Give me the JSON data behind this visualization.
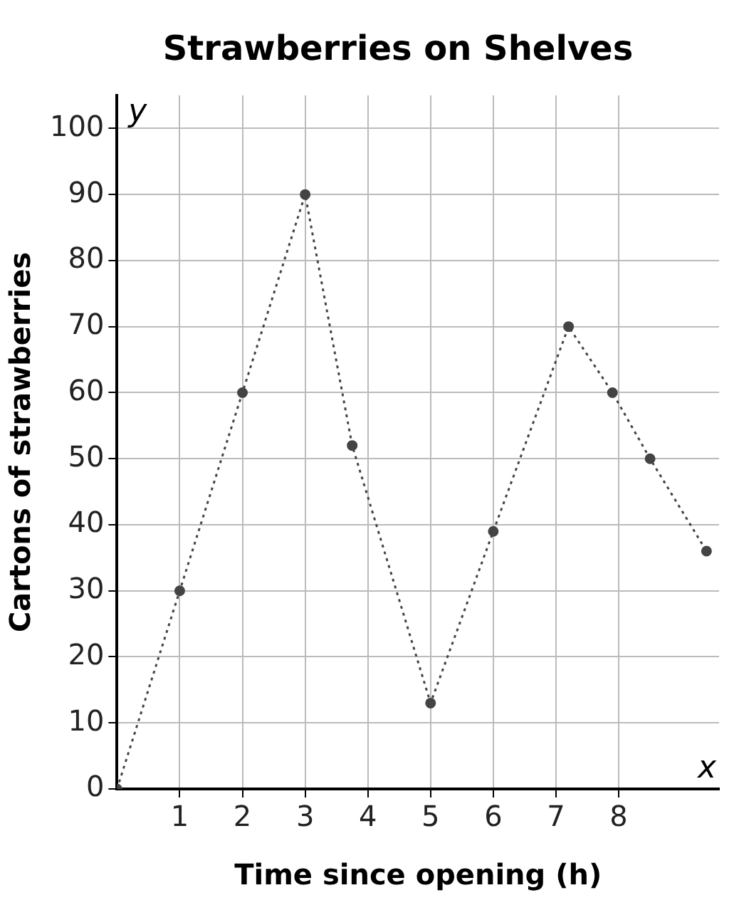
{
  "chart_data": {
    "type": "line",
    "title": "Strawberries on Shelves",
    "xlabel": "Time since opening (h)",
    "ylabel": "Cartons of strawberries",
    "x": [
      0,
      1,
      2,
      3,
      3.75,
      5,
      6,
      7.2,
      7.9,
      8.5,
      9.4
    ],
    "values": [
      0,
      30,
      60,
      90,
      52,
      13,
      39,
      70,
      60,
      50,
      36
    ],
    "color": "#444444",
    "marker": "circle",
    "line_style": "dotted",
    "xlim": [
      0,
      9.6
    ],
    "ylim": [
      0,
      105
    ],
    "xticks": [
      1,
      2,
      3,
      4,
      5,
      6,
      7,
      8
    ],
    "yticks": [
      0,
      10,
      20,
      30,
      40,
      50,
      60,
      70,
      80,
      90,
      100
    ],
    "grid": true,
    "annotations": [
      "x",
      "y"
    ]
  }
}
